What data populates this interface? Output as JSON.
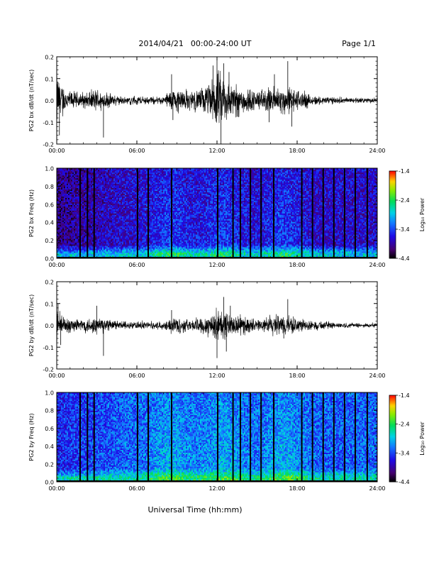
{
  "header": {
    "date": "2014/04/21",
    "time_range": "00:00-24:00 UT",
    "page": "Page 1/1"
  },
  "xaxis": {
    "title": "Universal Time (hh:mm)",
    "range_hours": [
      0,
      24
    ],
    "tick_hours": [
      0,
      6,
      12,
      18,
      24
    ],
    "tick_labels": [
      "00:00",
      "06:00",
      "12:00",
      "18:00",
      "24:00"
    ]
  },
  "colorbar": {
    "label": "Log₁₀ Power",
    "range": [
      -4.4,
      -1.4
    ],
    "tick_values": [
      -1.4,
      -2.4,
      -3.4,
      -4.4
    ],
    "tick_labels": [
      "-1.4",
      "-2.4",
      "-3.4",
      "-4.4"
    ]
  },
  "chart_data": [
    {
      "type": "line",
      "id": "bx",
      "ylabel": "PG2 bx dB/dt (nT/sec)",
      "ylim": [
        -0.2,
        0.2
      ],
      "y_ticks": [
        -0.2,
        -0.1,
        0.0,
        0.1,
        0.2
      ],
      "y_tick_labels": [
        "-0.2",
        "-0.1",
        "0.0",
        "0.1",
        "0.2"
      ],
      "noise_floor": 0.012,
      "envelope_hours": [
        0,
        0.5,
        1,
        2,
        3,
        4,
        5,
        6,
        7,
        8,
        8.5,
        9,
        10,
        11,
        11.5,
        12,
        12.5,
        13,
        14,
        15,
        16,
        17,
        18,
        19,
        20,
        21,
        22,
        23,
        24
      ],
      "envelope_amp": [
        0.15,
        0.08,
        0.05,
        0.04,
        0.06,
        0.035,
        0.02,
        0.02,
        0.02,
        0.02,
        0.06,
        0.07,
        0.05,
        0.07,
        0.1,
        0.16,
        0.14,
        0.1,
        0.08,
        0.05,
        0.07,
        0.08,
        0.06,
        0.03,
        0.02,
        0.015,
        0.012,
        0.01,
        0.01
      ],
      "spikes": [
        {
          "x": 0.0,
          "y": 0.22
        },
        {
          "x": 0.2,
          "y": -0.16
        },
        {
          "x": 3.5,
          "y": -0.17
        },
        {
          "x": 8.6,
          "y": 0.12
        },
        {
          "x": 8.7,
          "y": -0.09
        },
        {
          "x": 11.7,
          "y": 0.16
        },
        {
          "x": 12.0,
          "y": 0.19
        },
        {
          "x": 12.3,
          "y": -0.2
        },
        {
          "x": 12.5,
          "y": 0.17
        },
        {
          "x": 12.9,
          "y": 0.13
        },
        {
          "x": 15.9,
          "y": -0.1
        },
        {
          "x": 16.3,
          "y": 0.12
        },
        {
          "x": 17.3,
          "y": 0.18
        },
        {
          "x": 17.6,
          "y": -0.12
        }
      ]
    },
    {
      "type": "heatmap",
      "id": "bx-spec",
      "ylabel": "PG2 bx Freq (Hz)",
      "ylim": [
        0.0,
        1.0
      ],
      "y_ticks": [
        0.0,
        0.2,
        0.4,
        0.6,
        0.8,
        1.0
      ],
      "y_tick_labels": [
        "0.0",
        "0.2",
        "0.4",
        "0.6",
        "0.8",
        "1.0"
      ],
      "zlim": [
        -4.4,
        -1.4
      ],
      "base_log_power": -3.75,
      "low_freq_log_power": -2.9,
      "activity_boost_hours": [
        8.5,
        12.5,
        17.0
      ],
      "gap_hours": [
        1.75,
        2.3,
        2.8,
        6.05,
        6.85,
        8.6,
        12.05,
        13.2,
        13.75,
        14.5,
        15.3,
        16.25,
        18.35,
        19.15,
        19.95,
        20.75,
        21.55,
        22.35,
        23.25
      ]
    },
    {
      "type": "line",
      "id": "by",
      "ylabel": "PG2 by dB/dt (nT/sec)",
      "ylim": [
        -0.2,
        0.2
      ],
      "y_ticks": [
        -0.2,
        -0.1,
        0.0,
        0.1,
        0.2
      ],
      "y_tick_labels": [
        "-0.2",
        "-0.1",
        "0.0",
        "0.1",
        "0.2"
      ],
      "noise_floor": 0.01,
      "envelope_hours": [
        0,
        0.5,
        1,
        2,
        3,
        4,
        5,
        6,
        7,
        8,
        8.5,
        9,
        10,
        11,
        11.5,
        12,
        12.5,
        13,
        14,
        15,
        16,
        17,
        18,
        19,
        20,
        21,
        22,
        23,
        24
      ],
      "envelope_amp": [
        0.09,
        0.05,
        0.04,
        0.035,
        0.05,
        0.03,
        0.02,
        0.02,
        0.02,
        0.02,
        0.04,
        0.05,
        0.03,
        0.05,
        0.07,
        0.09,
        0.08,
        0.06,
        0.05,
        0.03,
        0.05,
        0.06,
        0.04,
        0.025,
        0.02,
        0.015,
        0.012,
        0.01,
        0.01
      ],
      "spikes": [
        {
          "x": 0.1,
          "y": 0.1
        },
        {
          "x": 0.3,
          "y": -0.09
        },
        {
          "x": 3.0,
          "y": 0.09
        },
        {
          "x": 3.5,
          "y": -0.14
        },
        {
          "x": 8.6,
          "y": 0.07
        },
        {
          "x": 12.0,
          "y": -0.15
        },
        {
          "x": 12.5,
          "y": 0.13
        },
        {
          "x": 12.7,
          "y": -0.12
        },
        {
          "x": 13.0,
          "y": 0.09
        },
        {
          "x": 17.3,
          "y": 0.12
        },
        {
          "x": 17.0,
          "y": -0.06
        }
      ]
    },
    {
      "type": "heatmap",
      "id": "by-spec",
      "ylabel": "PG2 by Freq (Hz)",
      "ylim": [
        0.0,
        1.0
      ],
      "y_ticks": [
        0.0,
        0.2,
        0.4,
        0.6,
        0.8,
        1.0
      ],
      "y_tick_labels": [
        "0.0",
        "0.2",
        "0.4",
        "0.6",
        "0.8",
        "1.0"
      ],
      "zlim": [
        -4.4,
        -1.4
      ],
      "base_log_power": -3.3,
      "low_freq_log_power": -2.7,
      "activity_boost_hours": [
        8.5,
        12.5,
        17.0
      ],
      "gap_hours": [
        1.75,
        2.3,
        2.8,
        6.05,
        6.85,
        8.6,
        12.05,
        13.2,
        13.75,
        14.5,
        15.3,
        16.25,
        18.35,
        19.15,
        19.95,
        20.75,
        21.55,
        22.35,
        23.25
      ]
    }
  ]
}
